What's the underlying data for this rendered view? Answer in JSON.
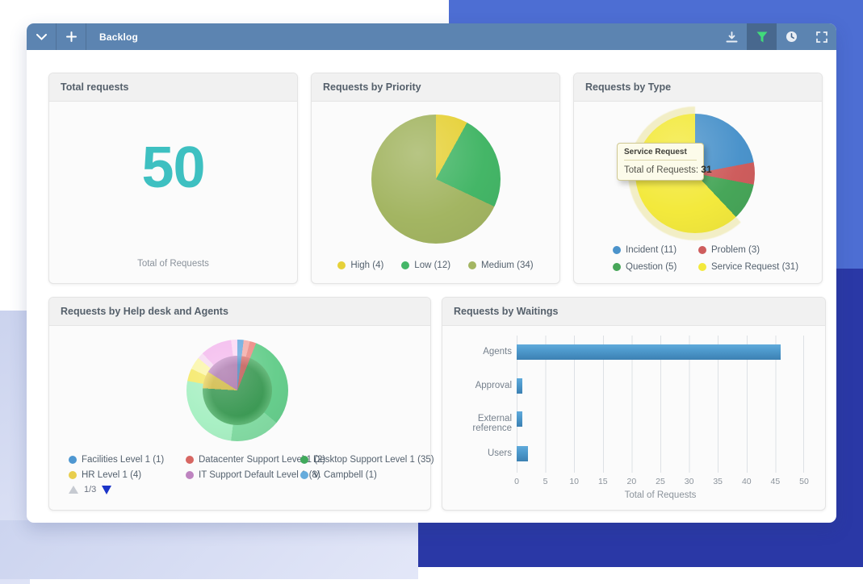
{
  "toolbar": {
    "title": "Backlog",
    "icons": {
      "left": [
        "chevron-down",
        "plus"
      ],
      "right": [
        "download",
        "filter",
        "history-clock",
        "fullscreen"
      ]
    },
    "filter_active_color": "#41DB7B"
  },
  "colors": {
    "toolbar": "#5C84B1",
    "toolbar_active": "#48688E",
    "bg_light_blue": "#4D6ED3",
    "bg_dark_blue": "#2A38A6",
    "bg_lavender": "#D5DBF2",
    "accent_teal": "#3EC0C1",
    "bar_blue": "#4E9ACD"
  },
  "cards": {
    "total": {
      "title": "Total requests",
      "value": "50",
      "caption": "Total of Requests"
    },
    "priority": {
      "title": "Requests by Priority",
      "chart_data": {
        "type": "pie",
        "labels": [
          "High",
          "Low",
          "Medium"
        ],
        "values": [
          4,
          12,
          34
        ],
        "colors": [
          "#E6D139",
          "#44B667",
          "#A3B562"
        ]
      },
      "legend": [
        {
          "label": "High (4)",
          "color": "#E6D139"
        },
        {
          "label": "Low (12)",
          "color": "#44B667"
        },
        {
          "label": "Medium (34)",
          "color": "#A3B562"
        }
      ]
    },
    "type": {
      "title": "Requests by Type",
      "chart_data": {
        "type": "pie",
        "labels": [
          "Incident",
          "Problem",
          "Question",
          "Service Request"
        ],
        "values": [
          11,
          3,
          5,
          31
        ],
        "colors": [
          "#4B93CB",
          "#CE5D5D",
          "#47A659",
          "#F3E93C"
        ],
        "highlighted_slice": "Service Request"
      },
      "halo": {
        "values": [
          19,
          31
        ],
        "colors": [
          "transparent",
          "#F1ECBD"
        ]
      },
      "tooltip": {
        "title": "Service Request",
        "text": "Total of Requests:",
        "value": "31"
      },
      "legend": [
        {
          "label": "Incident (11)",
          "color": "#4B93CB"
        },
        {
          "label": "Problem (3)",
          "color": "#CE5D5D"
        },
        {
          "label": "Question (5)",
          "color": "#47A659"
        },
        {
          "label": "Service Request (31)",
          "color": "#F3E93C"
        }
      ]
    },
    "helpdesk": {
      "title": "Requests by Help desk and Agents",
      "chart_data": {
        "type": "pie",
        "labels": [
          "Facilities Level 1",
          "Datacenter Support Level 1",
          "Desktop Support Level 1",
          "HR Level 1",
          "IT Support Default Level 1"
        ],
        "values": [
          1,
          2,
          35,
          4,
          8
        ],
        "colors": [
          "#5897D2",
          "#D76662",
          "#41A95C",
          "#E8CE4D",
          "#BE84C0"
        ]
      },
      "agents_ring": {
        "values": [
          1,
          1,
          1,
          15,
          8,
          13,
          2,
          2,
          1,
          5,
          1
        ],
        "colors": [
          "#6FAEE0",
          "#F4B0AC",
          "#ED8E88",
          "#67CE8D",
          "#84DCA4",
          "#A9F0C4",
          "#F5E96B",
          "#FBF6AC",
          "#F6DCF2",
          "#F4BCEE",
          "#FBD9F5"
        ]
      },
      "legend": [
        {
          "label": "Facilities Level 1 (1)",
          "color": "#4E97D1"
        },
        {
          "label": "Datacenter Support Level 1 (2)",
          "color": "#D76662"
        },
        {
          "label": "Desktop Support Level 1 (35)",
          "color": "#41A95C"
        },
        {
          "label": "HR Level 1 (4)",
          "color": "#E8CE4D"
        },
        {
          "label": "IT Support Default Level 1 (8)",
          "color": "#BE84C0"
        },
        {
          "label": "V. Campbell (1)",
          "color": "#67ACDC"
        }
      ],
      "pagination": {
        "page": "1/3"
      }
    },
    "waitings": {
      "title": "Requests by Waitings",
      "chart_data": {
        "type": "bar",
        "orientation": "horizontal",
        "categories": [
          "Agents",
          "Approval",
          "External reference",
          "Users"
        ],
        "values": [
          46,
          1,
          1,
          2
        ],
        "xlim": [
          0,
          50
        ],
        "xticks": [
          "0",
          "5",
          "10",
          "15",
          "20",
          "25",
          "30",
          "35",
          "40",
          "45",
          "50"
        ],
        "xlabel": "Total of Requests",
        "bar_color": "#4E9ACD",
        "grid": "vertical"
      }
    }
  }
}
